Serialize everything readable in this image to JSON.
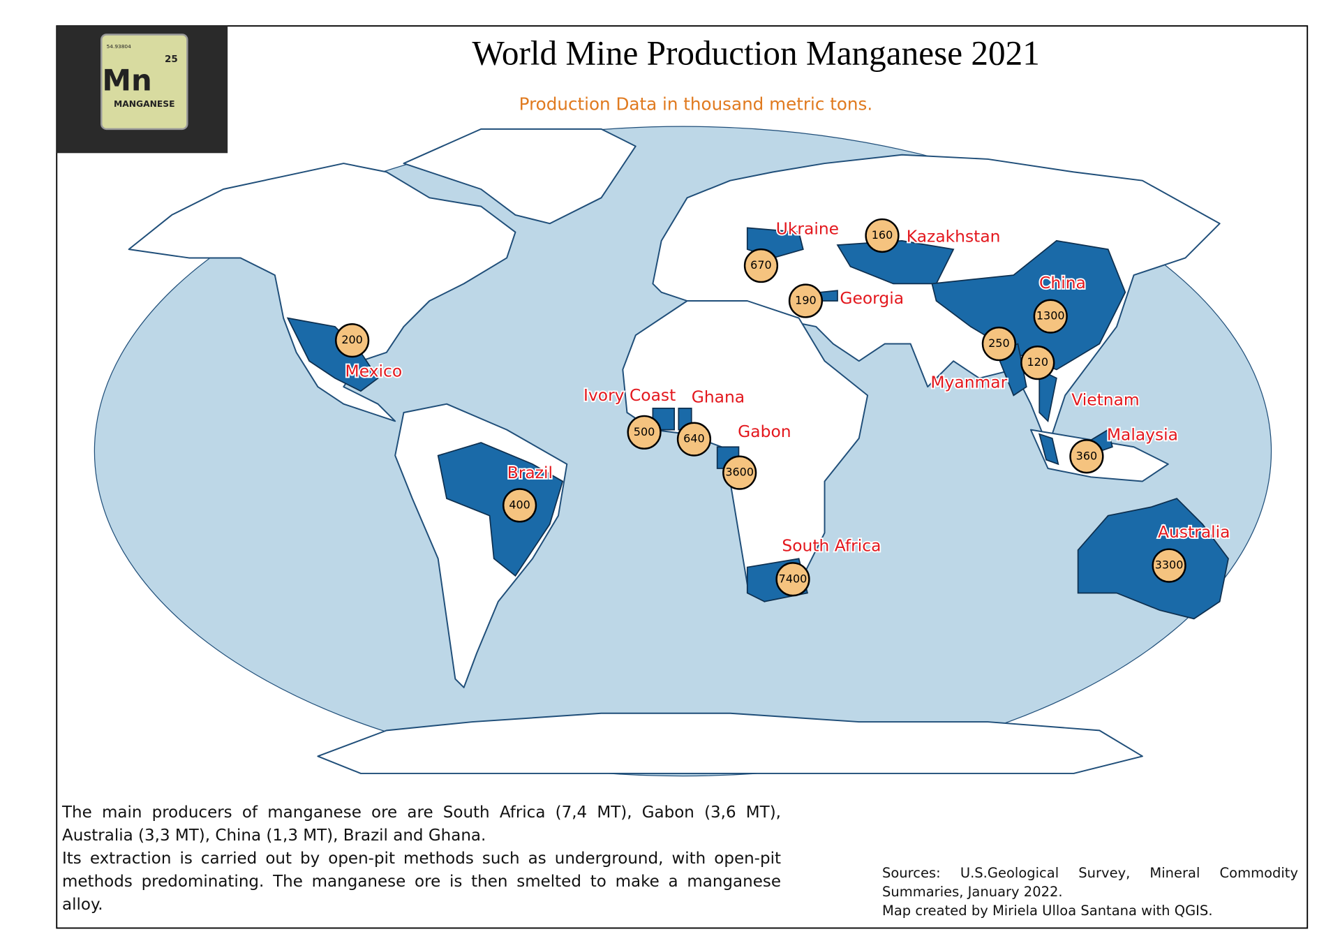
{
  "title": "World Mine Production Manganese 2021",
  "subtitle": "Production Data in thousand metric tons.",
  "logo": {
    "symbol": "Mn",
    "name": "MANGANESE",
    "number": "25",
    "mass": "54.93804"
  },
  "countries": [
    {
      "name": "Mexico",
      "value": 200
    },
    {
      "name": "Brazil",
      "value": 400
    },
    {
      "name": "Ivory Coast",
      "value": 500
    },
    {
      "name": "Ghana",
      "value": 640
    },
    {
      "name": "Gabon",
      "value": 3600
    },
    {
      "name": "South Africa",
      "value": 7400
    },
    {
      "name": "Ukraine",
      "value": 670
    },
    {
      "name": "Kazakhstan",
      "value": 160
    },
    {
      "name": "Georgia",
      "value": 190
    },
    {
      "name": "China",
      "value": 1300
    },
    {
      "name": "Myanmar",
      "value": 250
    },
    {
      "name": "Vietnam",
      "value": 120
    },
    {
      "name": "Malaysia",
      "value": 360
    },
    {
      "name": "Australia",
      "value": 3300
    }
  ],
  "description": [
    "The main producers of manganese ore are South Africa (7,4 MT), Gabon (3,6 MT), Australia (3,3 MT), China (1,3 MT), Brazil and Ghana.",
    "Its extraction is carried out by open-pit methods such as underground, with open-pit methods predominating. The manganese ore is then smelted to make a manganese alloy."
  ],
  "sources": [
    "Sources: U.S.Geological Survey, Mineral Commodity Summaries, January 2022.",
    "Map created by Miriela Ulloa Santana with QGIS."
  ]
}
